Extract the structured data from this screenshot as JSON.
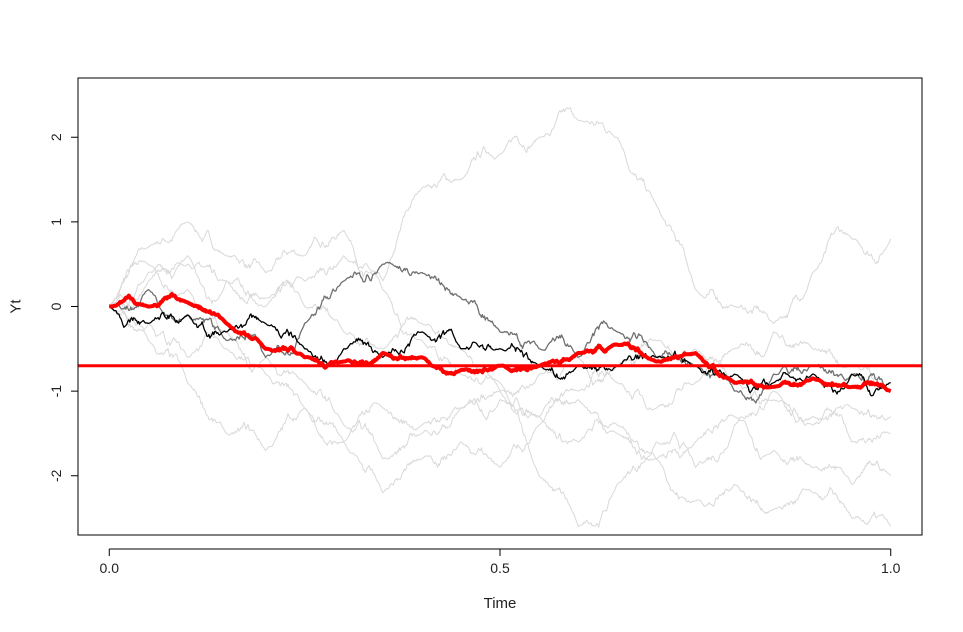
{
  "chart_data": {
    "type": "line",
    "xlabel": "Time",
    "ylabel": "Yt",
    "xlim": [
      -0.04,
      1.04
    ],
    "ylim": [
      -2.7,
      2.7
    ],
    "x_ticks": [
      {
        "value": 0.0,
        "label": "0.0"
      },
      {
        "value": 0.5,
        "label": "0.5"
      },
      {
        "value": 1.0,
        "label": "1.0"
      }
    ],
    "y_ticks": [
      {
        "value": -2,
        "label": "-2"
      },
      {
        "value": -1,
        "label": "-1"
      },
      {
        "value": 0,
        "label": "0"
      },
      {
        "value": 1,
        "label": "1"
      },
      {
        "value": 2,
        "label": "2"
      }
    ],
    "grid": false,
    "legend": "none",
    "reference_line": {
      "y": -0.7,
      "color": "#ff0000"
    },
    "series": [
      {
        "color": "#d9d9d9",
        "width": 1,
        "x": [
          0,
          0.05,
          0.1,
          0.15,
          0.2,
          0.25,
          0.3,
          0.35,
          0.4,
          0.45,
          0.5,
          0.55,
          0.6,
          0.65,
          0.7,
          0.75,
          0.8,
          0.85,
          0.9,
          0.95,
          1.0
        ],
        "y": [
          0,
          0.7,
          1.0,
          0.6,
          0.4,
          0.6,
          0.9,
          0.3,
          1.4,
          1.5,
          1.8,
          2.0,
          2.2,
          2.0,
          1.2,
          0.2,
          0.0,
          -0.2,
          0.4,
          0.8,
          0.8
        ]
      },
      {
        "color": "#d9d9d9",
        "width": 1,
        "x": [
          0,
          0.05,
          0.1,
          0.15,
          0.2,
          0.25,
          0.3,
          0.35,
          0.4,
          0.45,
          0.5,
          0.55,
          0.6,
          0.65,
          0.7,
          0.75,
          0.8,
          0.85,
          0.9,
          0.95,
          1.0
        ],
        "y": [
          0,
          0.4,
          0.5,
          0.3,
          0.0,
          0.3,
          0.6,
          0.2,
          -0.2,
          -0.5,
          -1.0,
          -2.0,
          -2.6,
          -2.1,
          -1.6,
          -1.9,
          -1.4,
          -1.0,
          -1.3,
          -1.6,
          -1.5
        ]
      },
      {
        "color": "#d9d9d9",
        "width": 1,
        "x": [
          0,
          0.05,
          0.1,
          0.15,
          0.2,
          0.25,
          0.3,
          0.35,
          0.4,
          0.45,
          0.5,
          0.55,
          0.6,
          0.65,
          0.7,
          0.75,
          0.8,
          0.85,
          0.9,
          0.95,
          1.0
        ],
        "y": [
          0,
          -0.4,
          -0.9,
          -1.5,
          -1.7,
          -1.2,
          -1.6,
          -1.2,
          -1.4,
          -1.2,
          -1.1,
          -1.3,
          -1.6,
          -1.4,
          -1.8,
          -2.3,
          -2.1,
          -2.4,
          -2.2,
          -2.5,
          -2.6
        ]
      },
      {
        "color": "#d9d9d9",
        "width": 1,
        "x": [
          0,
          0.05,
          0.1,
          0.15,
          0.2,
          0.25,
          0.3,
          0.35,
          0.4,
          0.45,
          0.5,
          0.55,
          0.6,
          0.65,
          0.7,
          0.75,
          0.8,
          0.85,
          0.9,
          0.95,
          1.0
        ],
        "y": [
          0,
          0.5,
          0.2,
          -0.3,
          -0.6,
          -0.9,
          -1.4,
          -1.8,
          -1.5,
          -1.2,
          -1.0,
          -0.8,
          -0.6,
          -0.9,
          -1.2,
          -0.9,
          -0.5,
          -0.3,
          -0.5,
          -0.7,
          -1.0
        ]
      },
      {
        "color": "#d9d9d9",
        "width": 1,
        "x": [
          0,
          0.05,
          0.1,
          0.15,
          0.2,
          0.25,
          0.3,
          0.35,
          0.4,
          0.45,
          0.5,
          0.55,
          0.6,
          0.65,
          0.7,
          0.75,
          0.8,
          0.85,
          0.9,
          0.95,
          1.0
        ],
        "y": [
          0,
          -0.2,
          -0.6,
          -0.5,
          -0.8,
          -1.2,
          -1.6,
          -2.2,
          -1.8,
          -1.6,
          -1.9,
          -1.4,
          -1.1,
          -1.5,
          -1.8,
          -1.6,
          -1.3,
          -1.7,
          -1.9,
          -2.1,
          -2.0
        ]
      },
      {
        "color": "#d9d9d9",
        "width": 1,
        "x": [
          0,
          0.05,
          0.1,
          0.15,
          0.2,
          0.25,
          0.3,
          0.35,
          0.4,
          0.45,
          0.5,
          0.55,
          0.6,
          0.65,
          0.7,
          0.75,
          0.8,
          0.85,
          0.9,
          0.95,
          1.0
        ],
        "y": [
          0,
          0.3,
          0.6,
          0.3,
          0.1,
          0.0,
          -0.3,
          -0.5,
          -0.4,
          -0.8,
          -0.9,
          -1.3,
          -1.0,
          -0.7,
          -0.4,
          -0.5,
          -0.9,
          -1.1,
          -1.4,
          -1.2,
          -1.3
        ]
      },
      {
        "color": "#707070",
        "width": 1.3,
        "x": [
          0,
          0.05,
          0.1,
          0.15,
          0.2,
          0.25,
          0.3,
          0.35,
          0.4,
          0.45,
          0.5,
          0.55,
          0.6,
          0.65,
          0.7,
          0.75,
          0.8,
          0.85,
          0.9,
          0.95,
          1.0
        ],
        "y": [
          0,
          0.2,
          -0.1,
          -0.4,
          -0.6,
          -0.2,
          0.3,
          0.5,
          0.4,
          0.1,
          -0.3,
          -0.5,
          -0.6,
          -0.3,
          -0.6,
          -0.7,
          -1.0,
          -0.8,
          -0.7,
          -0.8,
          -1.0
        ]
      },
      {
        "color": "#000000",
        "width": 1.3,
        "x": [
          0,
          0.05,
          0.1,
          0.15,
          0.2,
          0.25,
          0.3,
          0.35,
          0.4,
          0.45,
          0.5,
          0.55,
          0.6,
          0.65,
          0.7,
          0.75,
          0.8,
          0.85,
          0.9,
          0.95,
          1.0
        ],
        "y": [
          0,
          -0.2,
          -0.1,
          -0.3,
          -0.2,
          -0.5,
          -0.5,
          -0.6,
          -0.3,
          -0.5,
          -0.5,
          -0.7,
          -0.7,
          -0.7,
          -0.6,
          -0.7,
          -0.8,
          -0.9,
          -0.8,
          -0.8,
          -0.9
        ]
      },
      {
        "color": "#ff0000",
        "width": 4,
        "x": [
          0,
          0.05,
          0.1,
          0.15,
          0.2,
          0.25,
          0.3,
          0.35,
          0.4,
          0.45,
          0.5,
          0.55,
          0.6,
          0.65,
          0.7,
          0.75,
          0.8,
          0.85,
          0.9,
          0.95,
          1.0
        ],
        "y": [
          0,
          0.0,
          0.05,
          -0.2,
          -0.5,
          -0.6,
          -0.65,
          -0.55,
          -0.6,
          -0.75,
          -0.7,
          -0.7,
          -0.55,
          -0.45,
          -0.65,
          -0.55,
          -0.9,
          -0.95,
          -0.85,
          -0.95,
          -1.0
        ]
      }
    ]
  }
}
